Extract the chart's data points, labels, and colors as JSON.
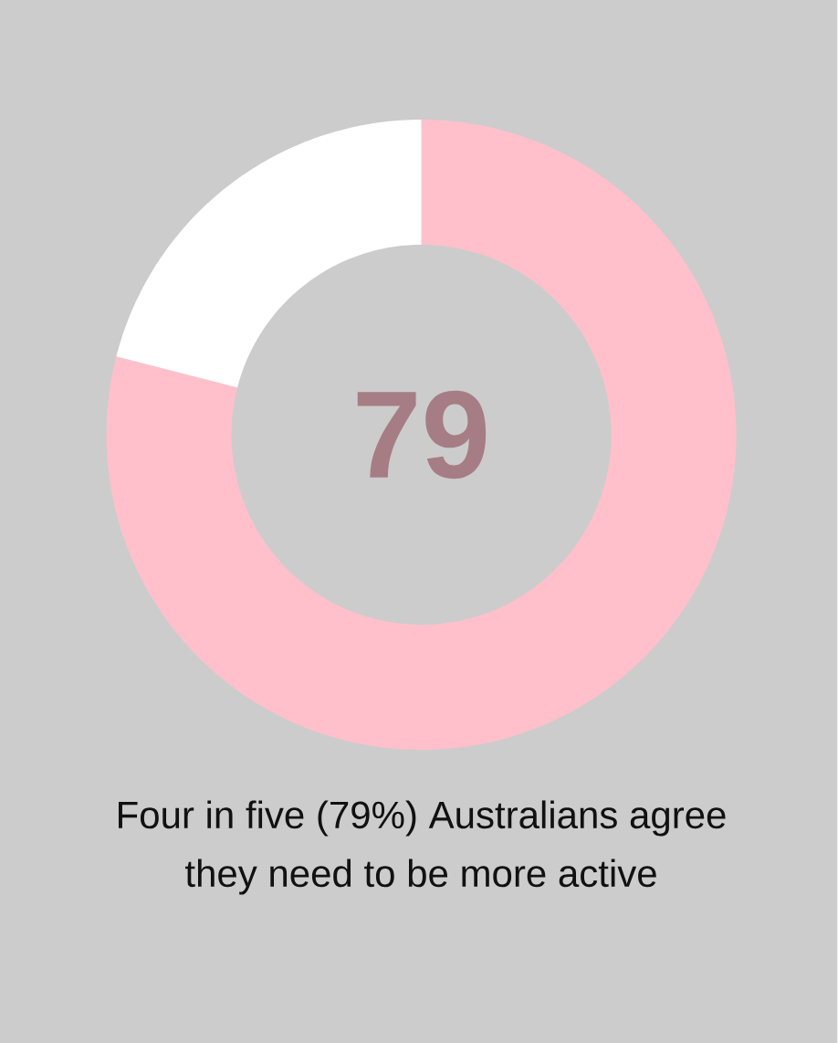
{
  "chart_data": {
    "type": "donut",
    "categories": [
      null,
      null
    ],
    "values": [
      79,
      21
    ],
    "colors": [
      "#ffc0cb",
      "#ffffff"
    ],
    "value_labels": [
      "79",
      null
    ],
    "annotations": [
      "Four in five (79%) Australians agree they need to be more active"
    ]
  }
}
